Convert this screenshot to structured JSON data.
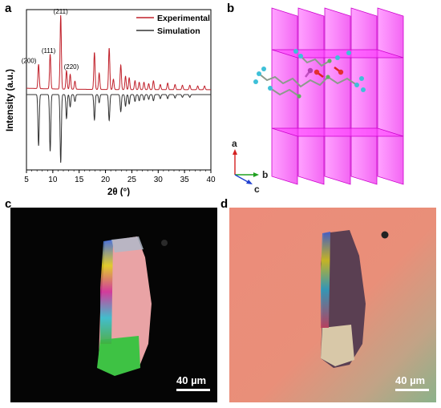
{
  "panels": {
    "a": "a",
    "b": "b",
    "c": "c",
    "d": "d"
  },
  "chart_data": {
    "type": "line",
    "xlabel": "2θ (°)",
    "ylabel": "Intensity (a.u.)",
    "xlim": [
      5,
      40
    ],
    "xticks": [
      5,
      10,
      15,
      20,
      25,
      30,
      35,
      40
    ],
    "legend_position": "top-right",
    "series": [
      {
        "name": "Experimental",
        "color": "#c0202a",
        "direction": "up",
        "baseline": 0,
        "peaks": [
          {
            "x": 7.3,
            "y": 0.33
          },
          {
            "x": 9.5,
            "y": 0.47
          },
          {
            "x": 11.5,
            "y": 1.0
          },
          {
            "x": 12.6,
            "y": 0.25
          },
          {
            "x": 13.3,
            "y": 0.2
          },
          {
            "x": 14.2,
            "y": 0.11
          },
          {
            "x": 17.9,
            "y": 0.5
          },
          {
            "x": 18.8,
            "y": 0.22
          },
          {
            "x": 20.7,
            "y": 0.56
          },
          {
            "x": 21.5,
            "y": 0.14
          },
          {
            "x": 22.9,
            "y": 0.33
          },
          {
            "x": 23.8,
            "y": 0.18
          },
          {
            "x": 24.5,
            "y": 0.16
          },
          {
            "x": 25.6,
            "y": 0.12
          },
          {
            "x": 26.4,
            "y": 0.1
          },
          {
            "x": 27.3,
            "y": 0.1
          },
          {
            "x": 28.2,
            "y": 0.08
          },
          {
            "x": 29.1,
            "y": 0.12
          },
          {
            "x": 30.4,
            "y": 0.07
          },
          {
            "x": 31.8,
            "y": 0.09
          },
          {
            "x": 33.2,
            "y": 0.07
          },
          {
            "x": 34.6,
            "y": 0.06
          },
          {
            "x": 36.0,
            "y": 0.06
          },
          {
            "x": 37.5,
            "y": 0.05
          },
          {
            "x": 38.8,
            "y": 0.05
          }
        ]
      },
      {
        "name": "Simulation",
        "color": "#333333",
        "direction": "down",
        "baseline": 0,
        "peaks": [
          {
            "x": 7.3,
            "y": 0.75
          },
          {
            "x": 9.5,
            "y": 0.83
          },
          {
            "x": 11.5,
            "y": 1.0
          },
          {
            "x": 12.6,
            "y": 0.35
          },
          {
            "x": 13.3,
            "y": 0.18
          },
          {
            "x": 14.2,
            "y": 0.1
          },
          {
            "x": 17.9,
            "y": 0.37
          },
          {
            "x": 18.8,
            "y": 0.12
          },
          {
            "x": 20.7,
            "y": 0.38
          },
          {
            "x": 22.9,
            "y": 0.25
          },
          {
            "x": 23.8,
            "y": 0.17
          },
          {
            "x": 24.5,
            "y": 0.14
          },
          {
            "x": 25.6,
            "y": 0.1
          },
          {
            "x": 26.4,
            "y": 0.09
          },
          {
            "x": 27.3,
            "y": 0.08
          },
          {
            "x": 28.2,
            "y": 0.07
          },
          {
            "x": 29.1,
            "y": 0.09
          },
          {
            "x": 30.4,
            "y": 0.06
          },
          {
            "x": 31.8,
            "y": 0.06
          },
          {
            "x": 33.2,
            "y": 0.05
          },
          {
            "x": 34.6,
            "y": 0.04
          },
          {
            "x": 36.0,
            "y": 0.04
          }
        ]
      }
    ],
    "annotations": [
      {
        "text": "(200)",
        "x": 7.3
      },
      {
        "text": "(111)",
        "x": 9.5
      },
      {
        "text": "(211)",
        "x": 11.5
      },
      {
        "text": "(220)",
        "x": 12.6
      }
    ]
  },
  "structure": {
    "plane_color": "#ff33ff",
    "axes": {
      "a": {
        "label": "a",
        "color": "#d42020"
      },
      "b": {
        "label": "b",
        "color": "#20a020"
      },
      "c": {
        "label": "c",
        "color": "#2040d0"
      }
    }
  },
  "micrographs": [
    {
      "id": "c",
      "scale_label": "40 µm",
      "background": "#050505"
    },
    {
      "id": "d",
      "scale_label": "40 µm",
      "background": "#e98d78"
    }
  ]
}
